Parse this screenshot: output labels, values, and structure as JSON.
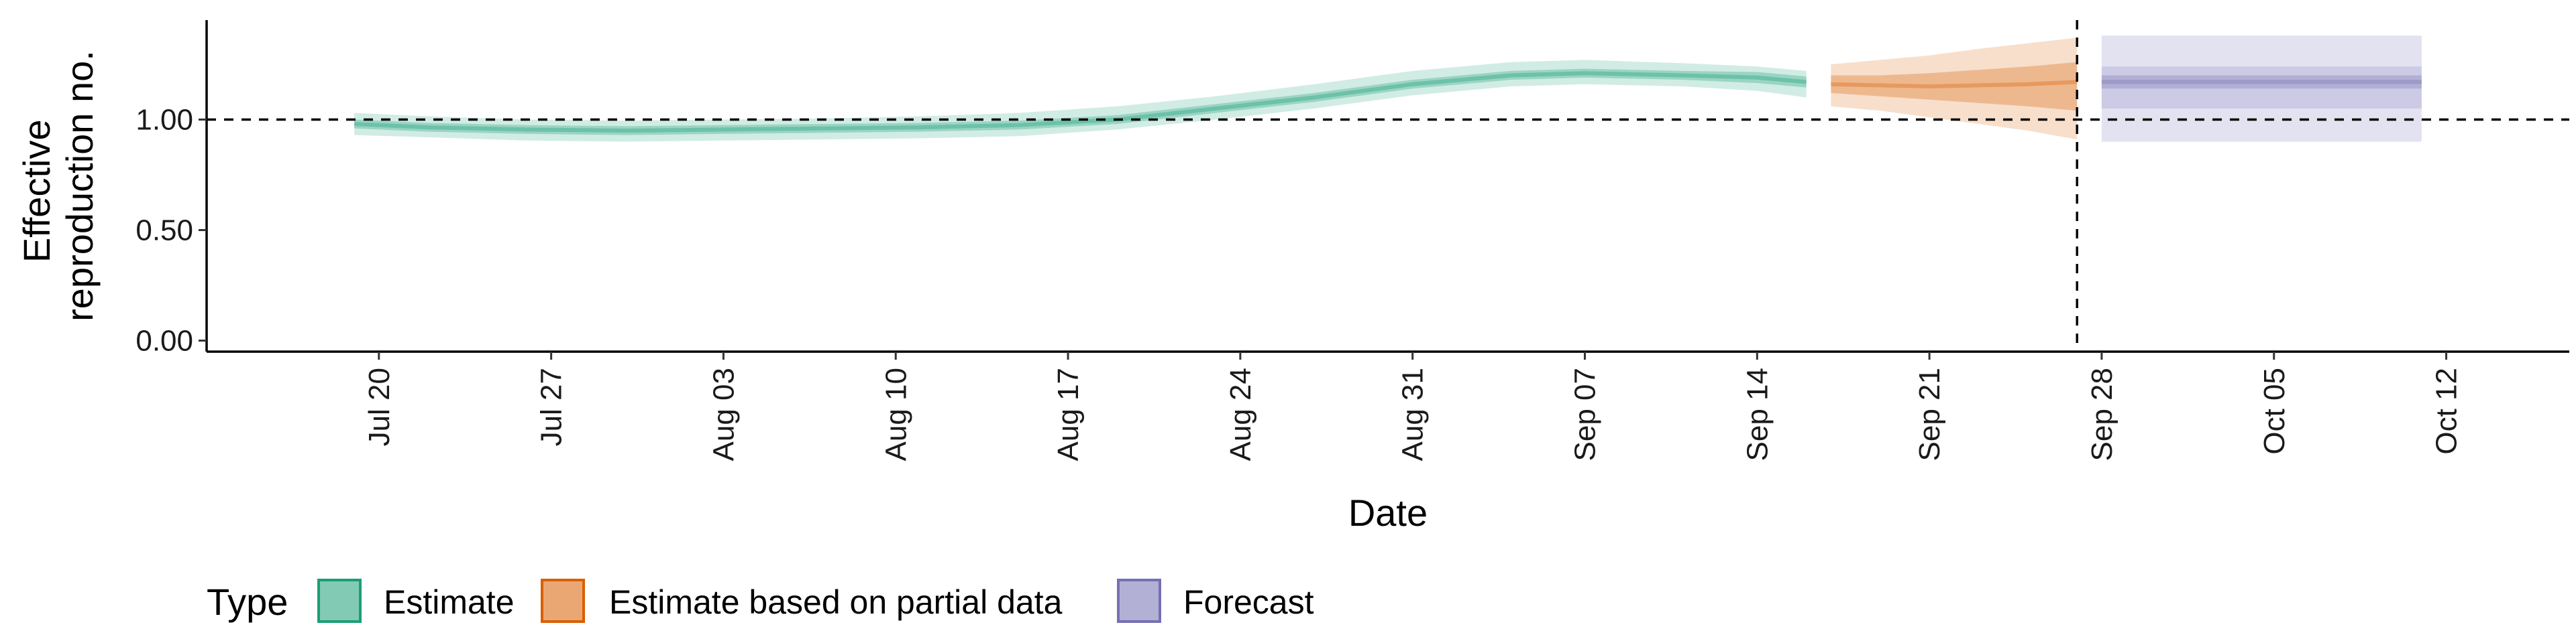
{
  "chart_data": {
    "type": "area",
    "xlabel": "Date",
    "ylabel_lines": [
      "Effective",
      "reproduction no."
    ],
    "y_ticks": [
      0.0,
      0.5,
      1.0
    ],
    "y_tick_labels": [
      "0.00",
      "0.50",
      "1.00"
    ],
    "ylim": [
      -0.05,
      1.45
    ],
    "x_ticks": [
      "2020-07-20",
      "2020-07-27",
      "2020-08-03",
      "2020-08-10",
      "2020-08-17",
      "2020-08-24",
      "2020-08-31",
      "2020-09-07",
      "2020-09-14",
      "2020-09-21",
      "2020-09-28",
      "2020-10-05",
      "2020-10-12"
    ],
    "x_tick_labels": [
      "Jul 20",
      "Jul 27",
      "Aug 03",
      "Aug 10",
      "Aug 17",
      "Aug 24",
      "Aug 31",
      "Sep 07",
      "Sep 14",
      "Sep 21",
      "Sep 28",
      "Oct 05",
      "Oct 12"
    ],
    "xlim": [
      "2020-07-13",
      "2020-10-17"
    ],
    "reference_line_y": 1.0,
    "vline_x": "2020-09-27",
    "legend_position": "bottom",
    "legend_title": "Type",
    "series": [
      {
        "name": "Estimate",
        "color": "#1b9e77",
        "dates": [
          "2020-07-19",
          "2020-07-22",
          "2020-07-26",
          "2020-07-30",
          "2020-08-03",
          "2020-08-07",
          "2020-08-11",
          "2020-08-15",
          "2020-08-19",
          "2020-08-23",
          "2020-08-27",
          "2020-08-31",
          "2020-09-04",
          "2020-09-07",
          "2020-09-11",
          "2020-09-14",
          "2020-09-16"
        ],
        "median": [
          0.98,
          0.965,
          0.955,
          0.95,
          0.955,
          0.96,
          0.965,
          0.975,
          1.0,
          1.05,
          1.1,
          1.16,
          1.2,
          1.21,
          1.2,
          1.19,
          1.17
        ],
        "inner_lower": [
          0.96,
          0.945,
          0.935,
          0.93,
          0.935,
          0.94,
          0.945,
          0.955,
          0.98,
          1.03,
          1.08,
          1.14,
          1.18,
          1.19,
          1.18,
          1.165,
          1.145
        ],
        "inner_upper": [
          1.0,
          0.985,
          0.975,
          0.97,
          0.975,
          0.98,
          0.985,
          0.995,
          1.02,
          1.07,
          1.12,
          1.18,
          1.22,
          1.23,
          1.22,
          1.215,
          1.195
        ],
        "outer_lower": [
          0.93,
          0.92,
          0.905,
          0.9,
          0.905,
          0.91,
          0.915,
          0.925,
          0.955,
          1.0,
          1.05,
          1.11,
          1.15,
          1.16,
          1.15,
          1.13,
          1.1
        ],
        "outer_upper": [
          1.03,
          1.015,
          1.0,
          0.995,
          1.0,
          1.005,
          1.015,
          1.03,
          1.06,
          1.105,
          1.16,
          1.22,
          1.26,
          1.27,
          1.255,
          1.24,
          1.22
        ]
      },
      {
        "name": "Estimate based on partial data",
        "color": "#d95f02",
        "dates": [
          "2020-09-17",
          "2020-09-19",
          "2020-09-21",
          "2020-09-23",
          "2020-09-25",
          "2020-09-27"
        ],
        "median": [
          1.16,
          1.155,
          1.15,
          1.155,
          1.16,
          1.17
        ],
        "inner_lower": [
          1.12,
          1.105,
          1.09,
          1.075,
          1.06,
          1.04
        ],
        "inner_upper": [
          1.2,
          1.2,
          1.21,
          1.225,
          1.24,
          1.26
        ],
        "outer_lower": [
          1.06,
          1.04,
          1.01,
          0.98,
          0.95,
          0.91
        ],
        "outer_upper": [
          1.25,
          1.27,
          1.29,
          1.32,
          1.345,
          1.37
        ]
      },
      {
        "name": "Forecast",
        "color": "#7570b3",
        "dates": [
          "2020-09-28",
          "2020-10-11"
        ],
        "median": [
          1.17,
          1.17
        ],
        "inner_lower": [
          1.14,
          1.14
        ],
        "inner_upper": [
          1.2,
          1.2
        ],
        "mid_lower": [
          1.05,
          1.05
        ],
        "mid_upper": [
          1.24,
          1.24
        ],
        "outer_lower": [
          0.9,
          0.9
        ],
        "outer_upper": [
          1.38,
          1.38
        ]
      }
    ]
  }
}
